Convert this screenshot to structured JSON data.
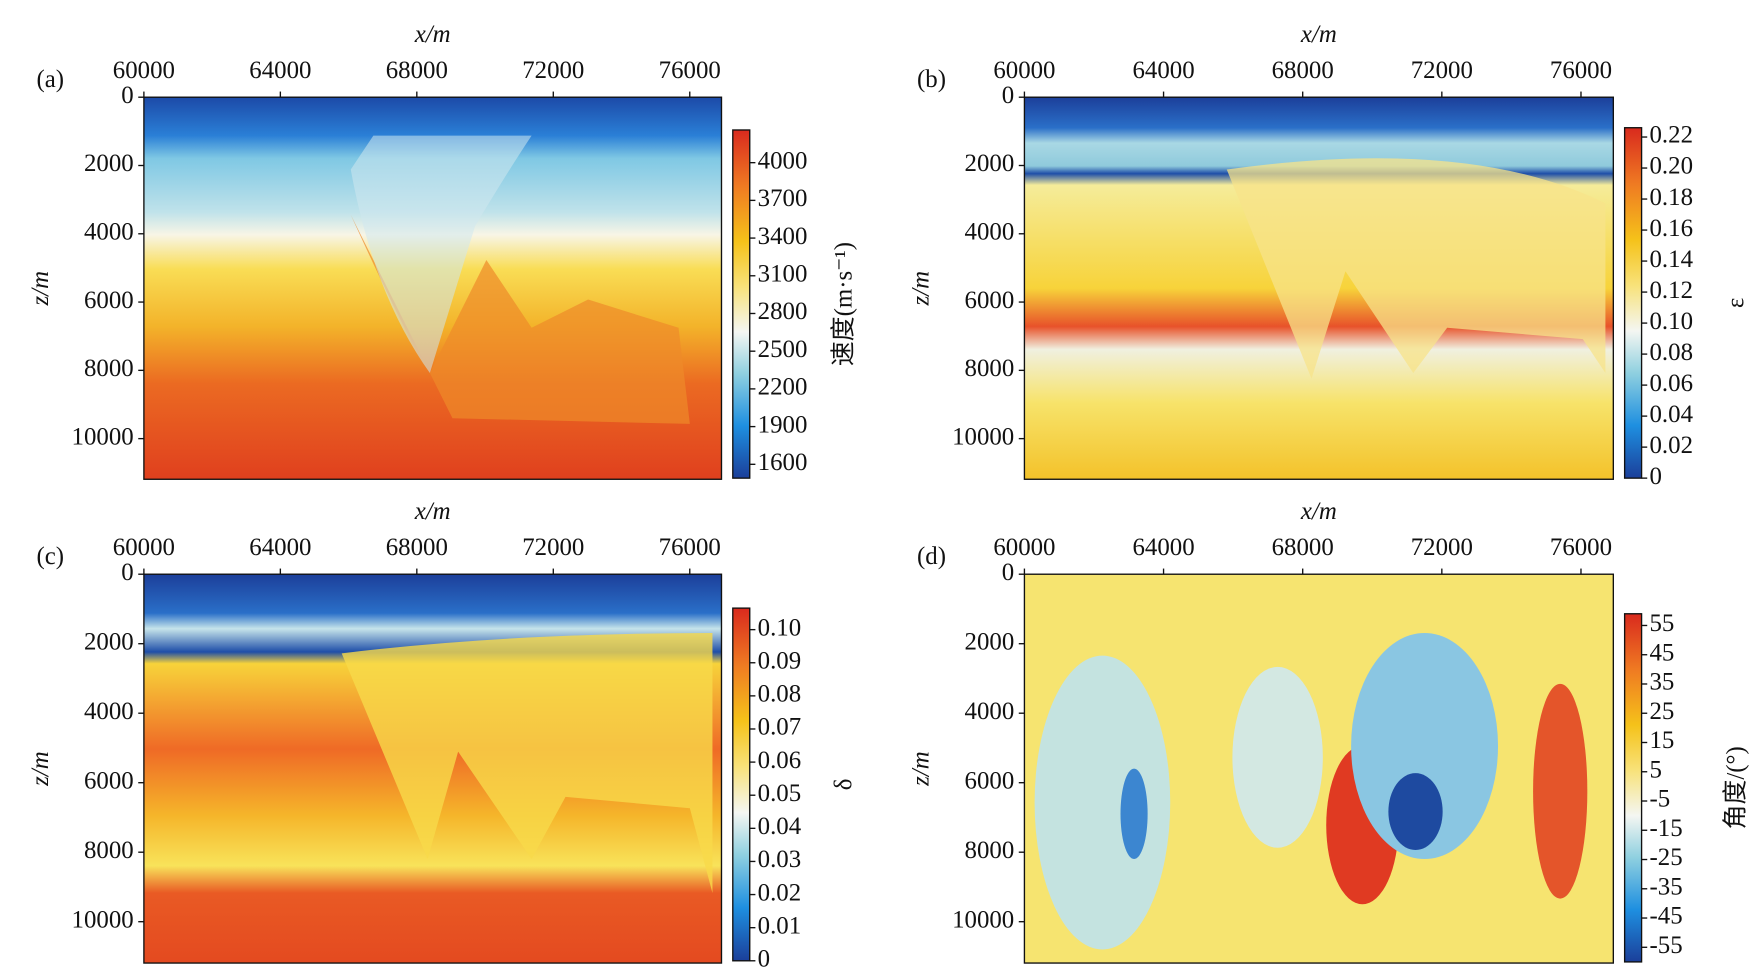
{
  "chart_data": [
    {
      "type": "heatmap",
      "panel_label": "(a)",
      "xlabel": "x/m",
      "ylabel": "z/m",
      "colorbar_label": "速度(m·s⁻¹)",
      "xlim": [
        60000,
        76930
      ],
      "xticks": [
        60000,
        64000,
        68000,
        72000,
        76000
      ],
      "ylim": [
        0,
        11190
      ],
      "yticks": [
        0,
        2000,
        4000,
        6000,
        8000,
        10000
      ],
      "clim": [
        1490,
        4260
      ],
      "cticks": [
        1600,
        1900,
        2200,
        2500,
        2800,
        3100,
        3400,
        3700,
        4000
      ]
    },
    {
      "type": "heatmap",
      "panel_label": "(b)",
      "xlabel": "x/m",
      "ylabel": "z/m",
      "colorbar_label": "ε",
      "xlim": [
        60000,
        76930
      ],
      "xticks": [
        60000,
        64000,
        68000,
        72000,
        76000
      ],
      "ylim": [
        0,
        11190
      ],
      "yticks": [
        0,
        2000,
        4000,
        6000,
        8000,
        10000
      ],
      "clim": [
        0,
        0.226
      ],
      "cticks": [
        0,
        0.02,
        0.04,
        0.06,
        0.08,
        {
          "value": 0.1,
          "label": "0.10"
        },
        0.12,
        0.14,
        0.16,
        0.18,
        {
          "value": 0.2,
          "label": "0.20"
        },
        0.22
      ]
    },
    {
      "type": "heatmap",
      "panel_label": "(c)",
      "xlabel": "x/m",
      "ylabel": "z/m",
      "colorbar_label": "δ",
      "xlim": [
        60000,
        76930
      ],
      "xticks": [
        60000,
        64000,
        68000,
        72000,
        76000
      ],
      "ylim": [
        0,
        11190
      ],
      "yticks": [
        0,
        2000,
        4000,
        6000,
        8000,
        10000
      ],
      "clim": [
        0,
        0.1065
      ],
      "cticks": [
        0,
        0.01,
        0.02,
        0.03,
        0.04,
        0.05,
        0.06,
        0.07,
        0.08,
        0.09,
        {
          "value": 0.1,
          "label": "0.10"
        }
      ]
    },
    {
      "type": "heatmap",
      "panel_label": "(d)",
      "xlabel": "x/m",
      "ylabel": "z/m",
      "colorbar_label": "角度/(°)",
      "xlim": [
        60000,
        76930
      ],
      "xticks": [
        60000,
        64000,
        68000,
        72000,
        76000
      ],
      "ylim": [
        0,
        11190
      ],
      "yticks": [
        0,
        2000,
        4000,
        6000,
        8000,
        10000
      ],
      "clim": [
        -60,
        59
      ],
      "cticks": [
        55,
        45,
        35,
        25,
        15,
        5,
        -5,
        -15,
        -25,
        -35,
        -45,
        -55
      ]
    }
  ]
}
